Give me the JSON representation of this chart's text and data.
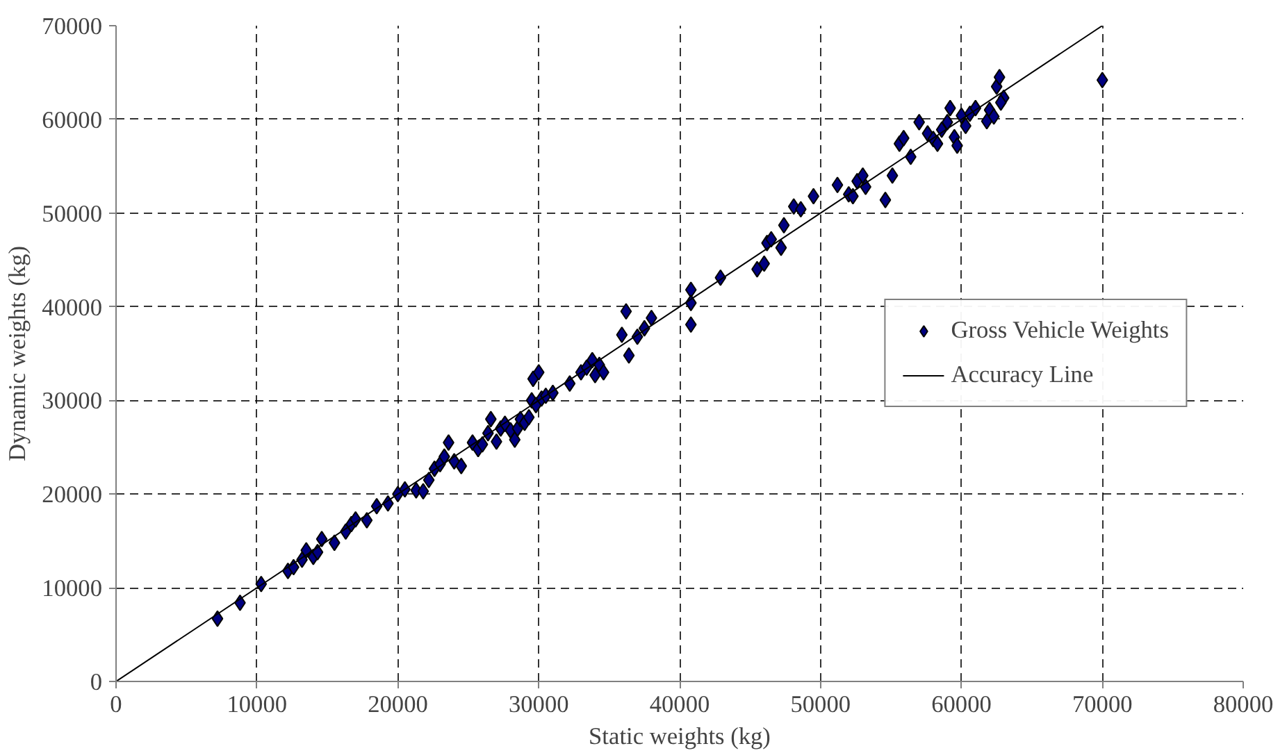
{
  "chart_data": {
    "type": "scatter",
    "xlabel": "Static weights (kg)",
    "ylabel": "Dynamic weights (kg)",
    "xlim": [
      0,
      80000
    ],
    "ylim": [
      0,
      70000
    ],
    "xticks": [
      0,
      10000,
      20000,
      30000,
      40000,
      50000,
      60000,
      70000,
      80000
    ],
    "yticks": [
      0,
      10000,
      20000,
      30000,
      40000,
      50000,
      60000,
      70000
    ],
    "grid": true,
    "legend": "right",
    "series": [
      {
        "name": "Gross Vehicle Weights",
        "marker": "diamond",
        "color": "#000080",
        "x": [
          7200,
          8800,
          10300,
          12200,
          12600,
          13200,
          13500,
          14000,
          14300,
          14600,
          15500,
          16300,
          16700,
          17000,
          17800,
          18500,
          19300,
          20000,
          20500,
          21300,
          21800,
          22200,
          22600,
          23000,
          23300,
          23600,
          24000,
          24500,
          25300,
          25700,
          26000,
          26400,
          26600,
          27000,
          27300,
          27600,
          28000,
          28300,
          28500,
          28700,
          29000,
          29300,
          29500,
          29600,
          29800,
          30000,
          30200,
          30500,
          31000,
          32200,
          33000,
          33400,
          33800,
          34000,
          34300,
          34600,
          35900,
          36200,
          36400,
          37000,
          37500,
          38000,
          40800,
          40800,
          40800,
          42900,
          45500,
          46000,
          46200,
          46500,
          47200,
          47400,
          48100,
          48600,
          49500,
          51200,
          52000,
          52300,
          52600,
          53000,
          53200,
          54600,
          55100,
          55600,
          55900,
          56400,
          57000,
          57600,
          58000,
          58300,
          58600,
          59000,
          59200,
          59500,
          59700,
          60000,
          60300,
          60600,
          61000,
          61800,
          62000,
          62300,
          62500,
          62700,
          63000,
          62800,
          70000
        ],
        "values": [
          6700,
          8400,
          10400,
          11800,
          12200,
          13000,
          14000,
          13300,
          13800,
          15200,
          14800,
          16000,
          16800,
          17300,
          17200,
          18700,
          19000,
          20000,
          20500,
          20400,
          20300,
          21500,
          22700,
          23200,
          24000,
          25500,
          23500,
          23000,
          25500,
          24800,
          25300,
          26500,
          28000,
          25600,
          27000,
          27500,
          26800,
          25800,
          27000,
          28000,
          27600,
          28200,
          30000,
          32300,
          29500,
          33000,
          30200,
          30500,
          30800,
          31800,
          33000,
          33500,
          34300,
          32700,
          33800,
          33000,
          37000,
          39500,
          34800,
          36800,
          37700,
          38800,
          41800,
          40400,
          38100,
          43100,
          44000,
          44600,
          46800,
          47200,
          46300,
          48700,
          50700,
          50400,
          51800,
          53000,
          52000,
          51800,
          53400,
          54000,
          52800,
          51400,
          54000,
          57400,
          58000,
          56000,
          59700,
          58500,
          57900,
          57400,
          58900,
          59700,
          61200,
          58100,
          57200,
          60400,
          59300,
          60600,
          61200,
          59800,
          61000,
          60300,
          63500,
          64500,
          62300,
          61800,
          64200
        ]
      },
      {
        "name": "Accuracy Line",
        "type": "line",
        "line_style": "solid",
        "color": "#000000",
        "x": [
          0,
          70000
        ],
        "values": [
          0,
          70000
        ]
      }
    ]
  }
}
